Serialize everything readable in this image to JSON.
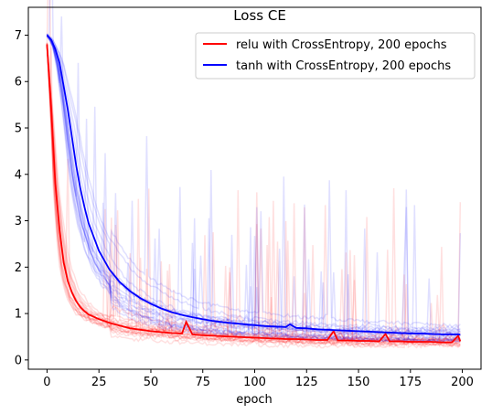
{
  "chart_data": {
    "type": "line",
    "title": "Loss CE",
    "xlabel": "epoch",
    "ylabel": "",
    "xlim": [
      -9,
      209
    ],
    "ylim": [
      -0.2,
      7.6
    ],
    "xticks": [
      0,
      25,
      50,
      75,
      100,
      125,
      150,
      175,
      200
    ],
    "yticks": [
      0,
      1,
      2,
      3,
      4,
      5,
      6,
      7
    ],
    "grid": false,
    "legend_position": "top-right",
    "series": [
      {
        "name": "relu with CrossEntropy, 200 epochs",
        "color": "#ff0000",
        "x": [
          0,
          2,
          4,
          6,
          8,
          10,
          12,
          14,
          16,
          18,
          20,
          25,
          30,
          35,
          40,
          45,
          50,
          55,
          60,
          65,
          67,
          70,
          75,
          80,
          85,
          90,
          95,
          100,
          105,
          110,
          115,
          120,
          125,
          130,
          135,
          138,
          140,
          145,
          150,
          155,
          160,
          163,
          165,
          170,
          175,
          180,
          185,
          190,
          195,
          198,
          199
        ],
        "values": [
          6.8,
          5.4,
          3.8,
          2.8,
          2.1,
          1.7,
          1.45,
          1.27,
          1.14,
          1.05,
          0.98,
          0.88,
          0.8,
          0.74,
          0.68,
          0.65,
          0.62,
          0.6,
          0.58,
          0.57,
          0.82,
          0.55,
          0.53,
          0.52,
          0.51,
          0.5,
          0.49,
          0.48,
          0.47,
          0.46,
          0.45,
          0.45,
          0.44,
          0.43,
          0.43,
          0.62,
          0.42,
          0.42,
          0.41,
          0.41,
          0.4,
          0.56,
          0.4,
          0.4,
          0.39,
          0.39,
          0.39,
          0.38,
          0.38,
          0.52,
          0.4
        ]
      },
      {
        "name": "tanh with CrossEntropy, 200 epochs",
        "color": "#0000ff",
        "x": [
          0,
          2,
          4,
          6,
          8,
          10,
          12,
          14,
          16,
          18,
          20,
          25,
          30,
          35,
          40,
          45,
          50,
          55,
          60,
          65,
          70,
          75,
          80,
          85,
          90,
          95,
          100,
          105,
          110,
          115,
          117,
          120,
          125,
          130,
          135,
          140,
          145,
          150,
          155,
          160,
          165,
          170,
          175,
          180,
          185,
          190,
          195,
          199
        ],
        "values": [
          7.0,
          6.9,
          6.7,
          6.4,
          5.9,
          5.4,
          4.8,
          4.2,
          3.7,
          3.3,
          2.95,
          2.35,
          1.95,
          1.68,
          1.48,
          1.33,
          1.21,
          1.11,
          1.03,
          0.97,
          0.92,
          0.88,
          0.84,
          0.81,
          0.79,
          0.77,
          0.75,
          0.73,
          0.72,
          0.71,
          0.77,
          0.69,
          0.68,
          0.66,
          0.65,
          0.64,
          0.63,
          0.62,
          0.61,
          0.6,
          0.59,
          0.58,
          0.57,
          0.57,
          0.56,
          0.55,
          0.55,
          0.55
        ]
      }
    ]
  }
}
